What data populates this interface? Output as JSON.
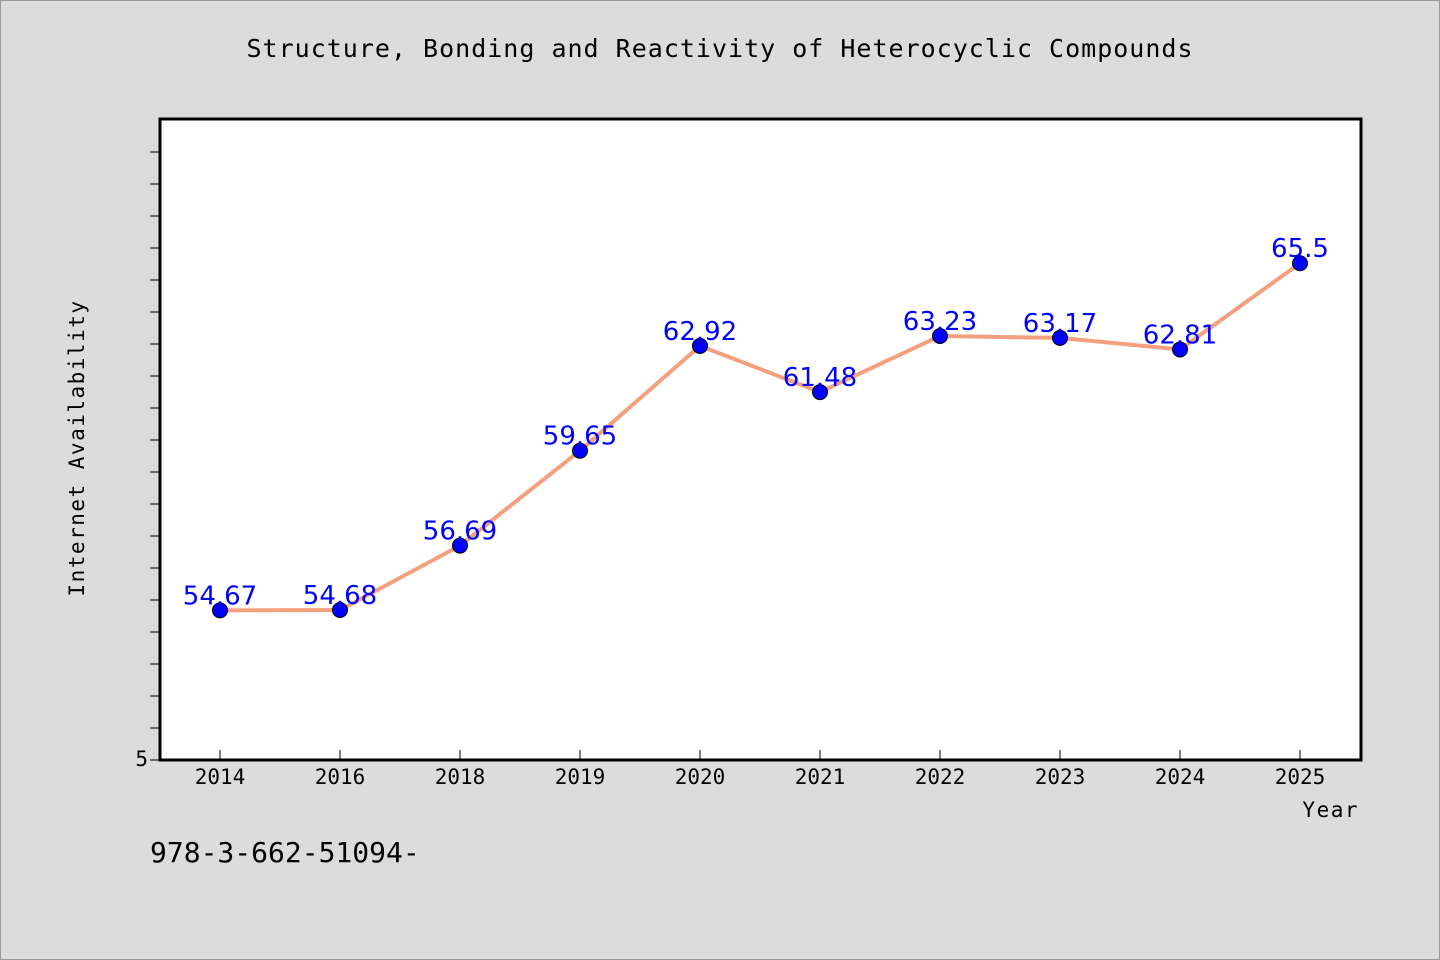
{
  "chart_data": {
    "type": "line",
    "title": "Structure, Bonding and Reactivity of Heterocyclic Compounds",
    "xlabel": "Year",
    "ylabel": "Internet Availability",
    "categories": [
      "2014",
      "2016",
      "2018",
      "2019",
      "2020",
      "2021",
      "2022",
      "2023",
      "2024",
      "2025"
    ],
    "series": [
      {
        "values": [
          54.67,
          54.68,
          56.69,
          59.65,
          62.92,
          61.48,
          63.23,
          63.17,
          62.81,
          65.5
        ],
        "labels": [
          "54.67",
          "54.68",
          "56.69",
          "59.65",
          "62.92",
          "61.48",
          "63.23",
          "63.17",
          "62.81",
          "65.5"
        ],
        "line_color": "#f4a07e",
        "marker_color": "#0000ff"
      }
    ],
    "y_tick_labels": [
      "5"
    ],
    "ylim": [
      50,
      70
    ],
    "grid": false,
    "legend": "none"
  },
  "footer": {
    "isbn_text": "978-3-662-51094-"
  }
}
